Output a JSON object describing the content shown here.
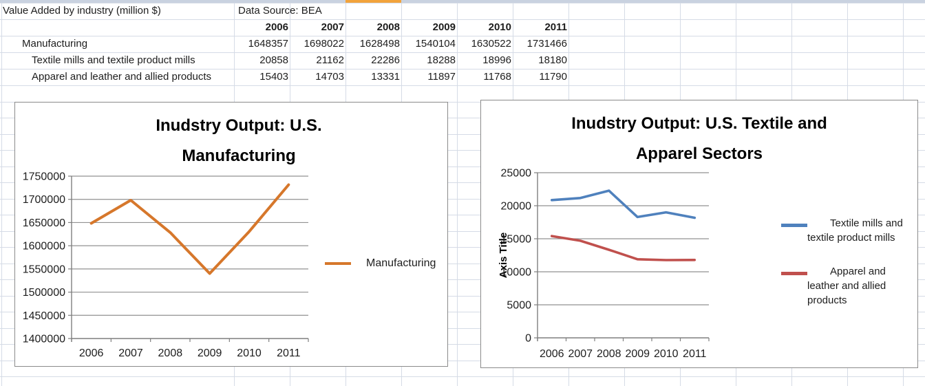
{
  "sheet": {
    "title_cell": "Value Added by industry (million $)",
    "source_cell": "Data Source: BEA",
    "years": [
      "2006",
      "2007",
      "2008",
      "2009",
      "2010",
      "2011"
    ],
    "rows": [
      {
        "label": "Manufacturing",
        "indent": 1,
        "values": [
          1648357,
          1698022,
          1628498,
          1540104,
          1630522,
          1731466
        ]
      },
      {
        "label": "Textile mills and textile product mills",
        "indent": 2,
        "values": [
          20858,
          21162,
          22286,
          18288,
          18996,
          18180
        ]
      },
      {
        "label": "Apparel and leather and allied products",
        "indent": 2,
        "values": [
          15403,
          14703,
          13331,
          11897,
          11768,
          11790
        ]
      }
    ]
  },
  "colors": {
    "sheet_gridline": "#d5dbe6",
    "header_strip": "#c9d2e0",
    "selected_column_orange": "#f2a33c",
    "chart_border": "#8a8a8a",
    "chart_gridline": "#919191",
    "axis_line": "#7f7f7f",
    "series_orange": "#d6772b",
    "series_blue": "#4f81bd",
    "series_red": "#c0504d"
  },
  "chart_data": [
    {
      "type": "line",
      "title": "Inudstry Output: U.S. Manufacturing",
      "title_lines": [
        "Inudstry Output: U.S.",
        "Manufacturing"
      ],
      "categories": [
        "2006",
        "2007",
        "2008",
        "2009",
        "2010",
        "2011"
      ],
      "series": [
        {
          "name": "Manufacturing",
          "legend_lines": [
            "Manufacturing"
          ],
          "color": "#d6772b",
          "values": [
            1648357,
            1698022,
            1628498,
            1540104,
            1630522,
            1731466
          ]
        }
      ],
      "xlabel": "",
      "ylabel": "",
      "ylim": [
        1400000,
        1750000
      ],
      "ytick_step": 50000,
      "grid": true,
      "legend_position": "right"
    },
    {
      "type": "line",
      "title": "Inudstry Output: U.S. Textile and Apparel Sectors",
      "title_lines": [
        "Inudstry Output: U.S. Textile and",
        "Apparel Sectors"
      ],
      "categories": [
        "2006",
        "2007",
        "2008",
        "2009",
        "2010",
        "2011"
      ],
      "series": [
        {
          "name": "Textile mills and textile product mills",
          "legend_lines": [
            "Textile mills and",
            "textile product mills"
          ],
          "color": "#4f81bd",
          "values": [
            20858,
            21162,
            22286,
            18288,
            18996,
            18180
          ]
        },
        {
          "name": "Apparel and leather and allied products",
          "legend_lines": [
            "Apparel and",
            "leather and allied",
            "products"
          ],
          "color": "#c0504d",
          "values": [
            15403,
            14703,
            13331,
            11897,
            11768,
            11790
          ]
        }
      ],
      "xlabel": "",
      "ylabel": "Axis Title",
      "ylim": [
        0,
        25000
      ],
      "ytick_step": 5000,
      "grid": true,
      "legend_position": "right"
    }
  ]
}
